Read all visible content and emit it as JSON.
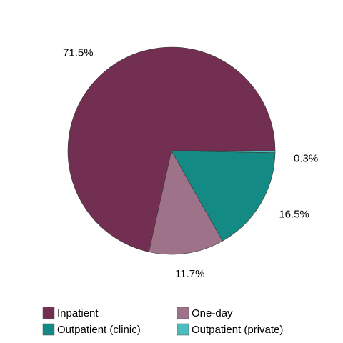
{
  "chart_data": {
    "type": "pie",
    "categories": [
      "Inpatient",
      "One-day",
      "Outpatient (clinic)",
      "Outpatient (private)"
    ],
    "values": [
      71.5,
      11.7,
      16.5,
      0.3
    ],
    "value_labels": [
      "71.5%",
      "11.7%",
      "16.5%",
      "0.3%"
    ],
    "colors": [
      "#722f51",
      "#9e7389",
      "#148a85",
      "#4bbdbd"
    ],
    "legend": "bottom"
  }
}
